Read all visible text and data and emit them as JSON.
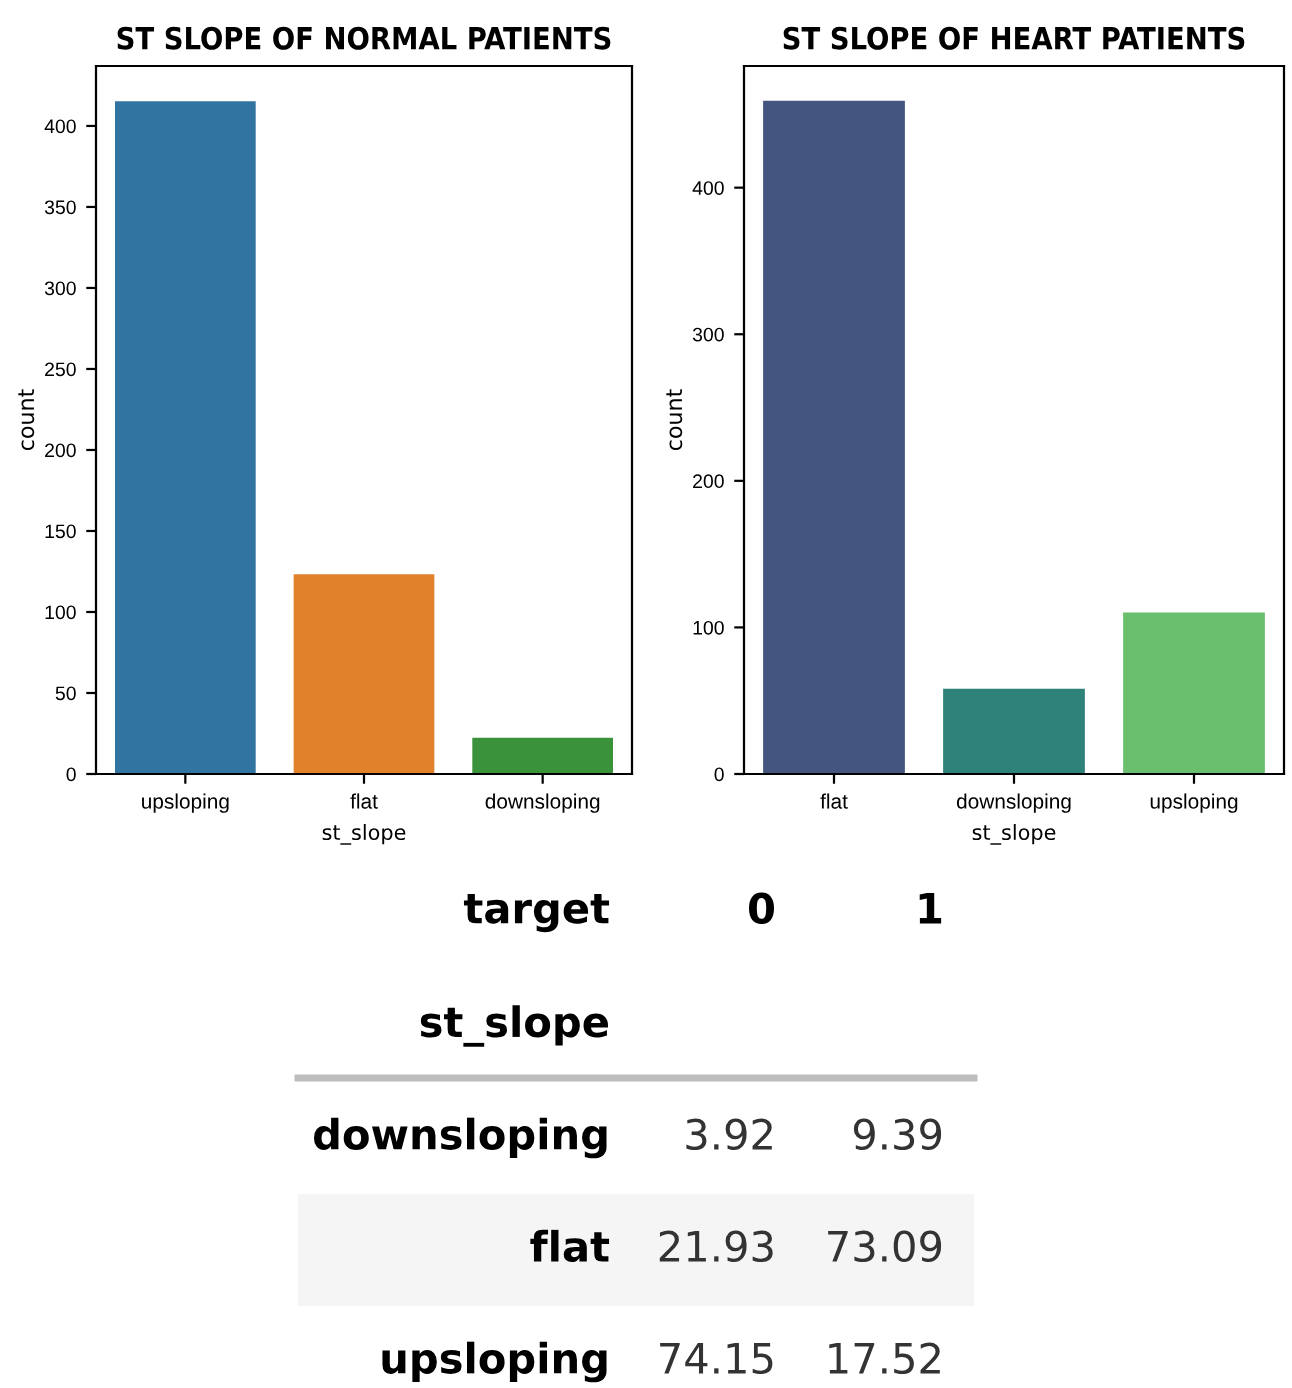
{
  "chart_data": [
    {
      "type": "bar",
      "title": "ST SLOPE OF NORMAL PATIENTS",
      "xlabel": "st_slope",
      "ylabel": "count",
      "categories": [
        "upsloping",
        "flat",
        "downsloping"
      ],
      "values": [
        416,
        124,
        23
      ],
      "colors": [
        "#3274a1",
        "#e1812c",
        "#3a923a"
      ],
      "ylim": [
        0,
        437
      ],
      "yticks": [
        0,
        50,
        100,
        150,
        200,
        250,
        300,
        350,
        400
      ],
      "grid": false,
      "legend": false
    },
    {
      "type": "bar",
      "title": "ST SLOPE OF HEART PATIENTS",
      "xlabel": "st_slope",
      "ylabel": "count",
      "categories": [
        "flat",
        "downsloping",
        "upsloping"
      ],
      "values": [
        460,
        59,
        111
      ],
      "colors": [
        "#44567f",
        "#2e8279",
        "#6abf6e"
      ],
      "ylim": [
        0,
        483
      ],
      "yticks": [
        0,
        100,
        200,
        300,
        400
      ],
      "grid": false,
      "legend": false
    },
    {
      "type": "heatmap",
      "xlabel": "target",
      "ylabel": "st_slope",
      "categories": [
        "0",
        "1"
      ],
      "y_categories": [
        "downsloping",
        "flat",
        "upsloping"
      ],
      "data_labels": true,
      "cells": [
        [
          3.92,
          9.39
        ],
        [
          21.93,
          73.09
        ],
        [
          74.15,
          17.52
        ]
      ]
    }
  ]
}
